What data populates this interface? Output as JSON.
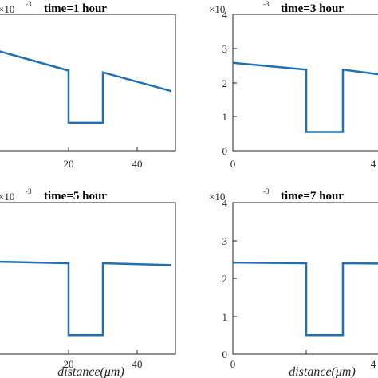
{
  "chart_data": [
    {
      "type": "line",
      "title": "time=1 hour",
      "xlabel": "",
      "ylabel": "",
      "xlim": [
        0,
        50
      ],
      "ylim": [
        0,
        4
      ],
      "xticks": [
        "20",
        "40"
      ],
      "yticks": [],
      "exponent": {
        "base": "×10",
        "power": "-3"
      },
      "series": [
        {
          "color": "#1f6fb5",
          "x": [
            -5,
            20,
            20,
            30,
            30,
            50
          ],
          "y": [
            3.05,
            2.35,
            0.82,
            0.82,
            2.3,
            1.75
          ]
        }
      ]
    },
    {
      "type": "line",
      "title": "time=3 hour",
      "xlabel": "",
      "ylabel": "",
      "xlim": [
        0,
        50
      ],
      "ylim": [
        0,
        4
      ],
      "xticks": [
        "0",
        "4"
      ],
      "yticks": [
        "0",
        "1",
        "2",
        "3",
        "4"
      ],
      "exponent": {
        "base": "×10",
        "power": "-3"
      },
      "series": [
        {
          "color": "#1f6fb5",
          "x": [
            0,
            20,
            20,
            30,
            30,
            50
          ],
          "y": [
            2.58,
            2.38,
            0.55,
            0.55,
            2.38,
            2.1
          ]
        }
      ]
    },
    {
      "type": "line",
      "title": "time=5 hour",
      "xlabel": "distance(μm)",
      "ylabel": "",
      "xlim": [
        0,
        50
      ],
      "ylim": [
        0,
        4
      ],
      "xticks": [
        "20",
        "40"
      ],
      "yticks": [],
      "exponent": {
        "base": "×10",
        "power": "-3"
      },
      "series": [
        {
          "color": "#1f6fb5",
          "x": [
            -5,
            20,
            20,
            30,
            30,
            50
          ],
          "y": [
            2.45,
            2.4,
            0.5,
            0.5,
            2.4,
            2.35
          ]
        }
      ]
    },
    {
      "type": "line",
      "title": "time=7 hour",
      "xlabel": "distance(μm)",
      "ylabel": "",
      "xlim": [
        0,
        50
      ],
      "ylim": [
        0,
        4
      ],
      "xticks": [
        "0",
        "20",
        "4"
      ],
      "yticks": [
        "0",
        "1",
        "2",
        "3",
        "4"
      ],
      "exponent": {
        "base": "×10",
        "power": "-3"
      },
      "series": [
        {
          "color": "#1f6fb5",
          "x": [
            0,
            20,
            20,
            30,
            30,
            50
          ],
          "y": [
            2.42,
            2.4,
            0.5,
            0.5,
            2.4,
            2.38
          ]
        }
      ]
    }
  ]
}
